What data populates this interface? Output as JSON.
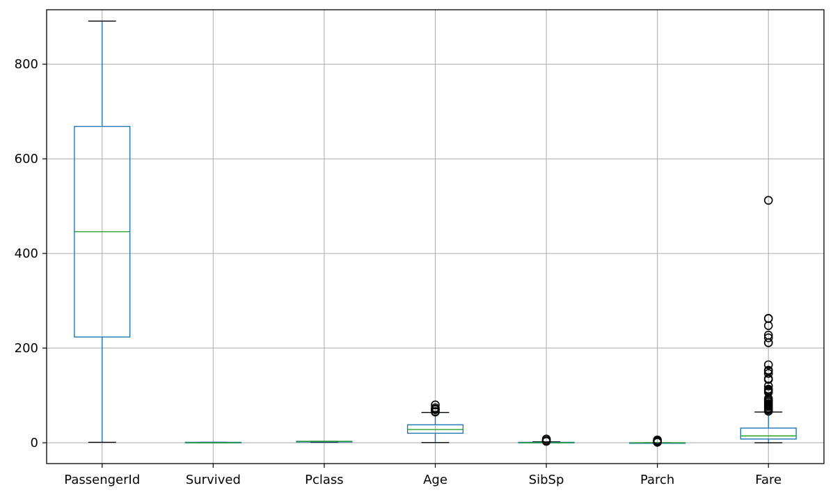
{
  "chart_data": {
    "type": "box",
    "title": "",
    "xlabel": "",
    "ylabel": "",
    "ylim": [
      -44,
      915
    ],
    "yticks": [
      0,
      200,
      400,
      600,
      800
    ],
    "grid": true,
    "colors": {
      "box": "#1f77b4",
      "median": "#2ca02c",
      "cap": "#000000",
      "grid": "#b0b0b0",
      "axes": "#000000"
    },
    "categories": [
      "PassengerId",
      "Survived",
      "Pclass",
      "Age",
      "SibSp",
      "Parch",
      "Fare"
    ],
    "boxes": [
      {
        "label": "PassengerId",
        "whislo": 1,
        "q1": 223.5,
        "med": 446,
        "q3": 668.5,
        "whishi": 891,
        "fliers": []
      },
      {
        "label": "Survived",
        "whislo": 0,
        "q1": 0,
        "med": 0,
        "q3": 1,
        "whishi": 1,
        "fliers": []
      },
      {
        "label": "Pclass",
        "whislo": 1,
        "q1": 2,
        "med": 3,
        "q3": 3,
        "whishi": 3,
        "fliers": []
      },
      {
        "label": "Age",
        "whislo": 0.42,
        "q1": 20.1,
        "med": 28,
        "q3": 38,
        "whishi": 64,
        "fliers": [
          65,
          66,
          70,
          70.5,
          71,
          74,
          80
        ]
      },
      {
        "label": "SibSp",
        "whislo": 0,
        "q1": 0,
        "med": 0,
        "q3": 1,
        "whishi": 2,
        "fliers": [
          3,
          4,
          5,
          8
        ]
      },
      {
        "label": "Parch",
        "whislo": 0,
        "q1": 0,
        "med": 0,
        "q3": 0,
        "whishi": 0,
        "fliers": [
          1,
          2,
          3,
          4,
          5,
          6
        ]
      },
      {
        "label": "Fare",
        "whislo": 0,
        "q1": 7.9,
        "med": 14.45,
        "q3": 31,
        "whishi": 65,
        "fliers": [
          66.6,
          69.55,
          71.28,
          73.5,
          76.73,
          77.29,
          78.85,
          79.65,
          81.86,
          83.16,
          86.5,
          89.1,
          90,
          91.08,
          93.5,
          106.43,
          108.9,
          110.88,
          113.28,
          120,
          133.65,
          134.5,
          135.63,
          146.52,
          151.55,
          153.46,
          164.87,
          211.34,
          211.5,
          221.78,
          227.53,
          247.52,
          262.38,
          263,
          512.33
        ]
      }
    ]
  }
}
